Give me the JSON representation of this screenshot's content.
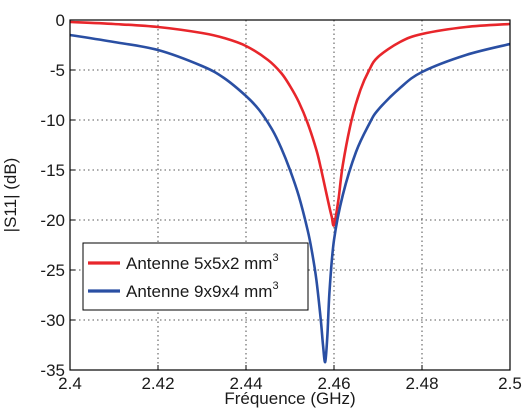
{
  "chart_data": {
    "type": "line",
    "xlabel": "Fréquence (GHz)",
    "ylabel": "|S11| (dB)",
    "xlim": [
      2.4,
      2.5
    ],
    "ylim": [
      -35,
      0
    ],
    "x_ticks": [
      2.4,
      2.42,
      2.44,
      2.46,
      2.48,
      2.5
    ],
    "x_tick_labels": [
      "2.4",
      "2.42",
      "2.44",
      "2.46",
      "2.48",
      "2.5"
    ],
    "y_ticks": [
      0,
      -5,
      -10,
      -15,
      -20,
      -25,
      -30,
      -35
    ],
    "y_tick_labels": [
      "0",
      "-5",
      "-10",
      "-15",
      "-20",
      "-25",
      "-30",
      "-35"
    ],
    "grid": true,
    "legend_position": "lower-left",
    "series": [
      {
        "name": "Antenne 5x5x2 mm",
        "name_sup": "3",
        "color": "#e8262b",
        "x": [
          2.4,
          2.41,
          2.42,
          2.43,
          2.435,
          2.44,
          2.445,
          2.448,
          2.45,
          2.452,
          2.454,
          2.456,
          2.457,
          2.458,
          2.459,
          2.4595,
          2.46,
          2.461,
          2.462,
          2.464,
          2.466,
          2.468,
          2.47,
          2.475,
          2.48,
          2.49,
          2.5
        ],
        "y": [
          -0.2,
          -0.4,
          -0.7,
          -1.3,
          -1.8,
          -2.6,
          -4.0,
          -5.3,
          -6.6,
          -8.2,
          -10.3,
          -13.0,
          -14.8,
          -16.8,
          -18.8,
          -19.7,
          -20.5,
          -18.0,
          -14.5,
          -10.0,
          -7.0,
          -5.0,
          -3.7,
          -2.2,
          -1.4,
          -0.7,
          -0.4
        ]
      },
      {
        "name": "Antenne 9x9x4 mm",
        "name_sup": "3",
        "color": "#2a4fa3",
        "x": [
          2.4,
          2.41,
          2.42,
          2.43,
          2.435,
          2.44,
          2.443,
          2.446,
          2.448,
          2.45,
          2.452,
          2.454,
          2.455,
          2.456,
          2.457,
          2.4575,
          2.458,
          2.4585,
          2.459,
          2.46,
          2.462,
          2.465,
          2.468,
          2.47,
          2.475,
          2.48,
          2.49,
          2.5
        ],
        "y": [
          -1.5,
          -2.2,
          -3.0,
          -4.6,
          -5.8,
          -7.6,
          -9.0,
          -11.0,
          -12.8,
          -15.0,
          -17.6,
          -21.0,
          -23.2,
          -26.0,
          -30.0,
          -32.5,
          -34.2,
          -31.5,
          -27.0,
          -22.0,
          -17.5,
          -13.2,
          -10.4,
          -9.0,
          -6.8,
          -5.2,
          -3.5,
          -2.4
        ]
      }
    ]
  }
}
